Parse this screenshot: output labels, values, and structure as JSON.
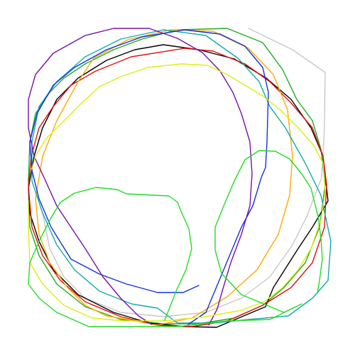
{
  "scribbles": [
    {
      "name": "gray-loop",
      "color": "#c8c8c8"
    },
    {
      "name": "green-loop",
      "color": "#22aa22"
    },
    {
      "name": "black-loop",
      "color": "#000000"
    },
    {
      "name": "red-loop",
      "color": "#e01010"
    },
    {
      "name": "orange-loop",
      "color": "#ffaa00"
    },
    {
      "name": "teal-loop",
      "color": "#12aaaa"
    },
    {
      "name": "blue-loop",
      "color": "#1133dd"
    },
    {
      "name": "purple-loop",
      "color": "#7711aa"
    },
    {
      "name": "yellow-loop",
      "color": "#ddee11"
    },
    {
      "name": "lime-loop",
      "color": "#22dd22"
    }
  ]
}
